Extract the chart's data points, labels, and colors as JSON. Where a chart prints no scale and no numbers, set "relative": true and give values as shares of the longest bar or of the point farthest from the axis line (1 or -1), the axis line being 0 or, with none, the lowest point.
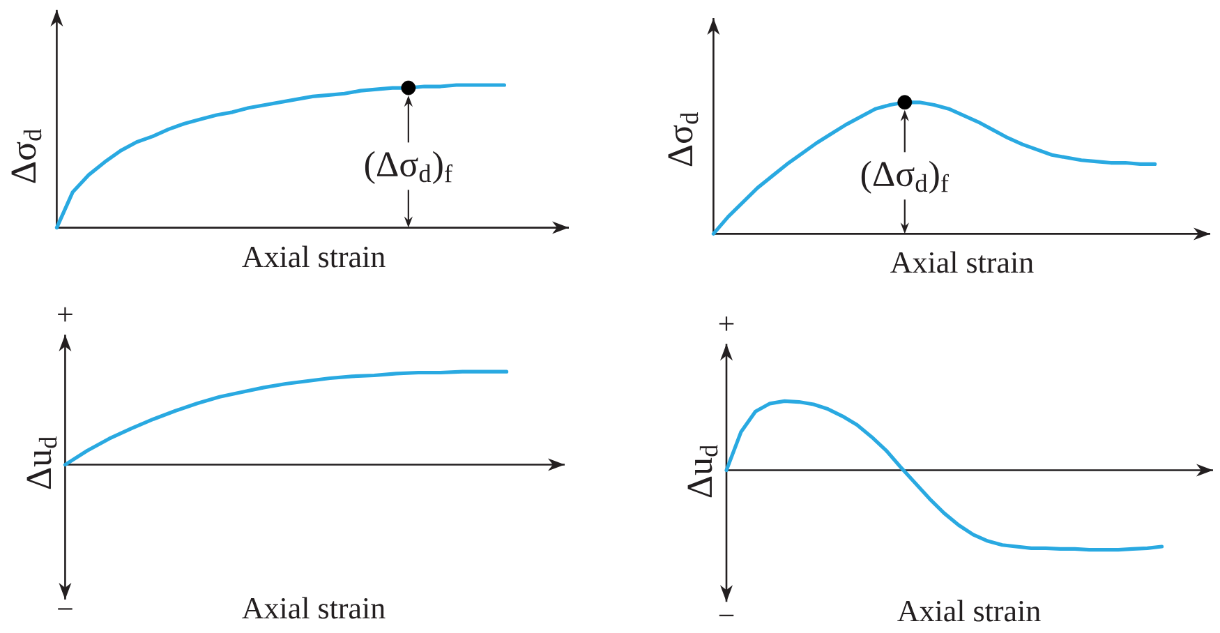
{
  "chart_data": [
    {
      "type": "line",
      "relative": true,
      "xlabel": "Axial strain",
      "ylabel": "Δσ$_{d}$",
      "categories": [
        null,
        null,
        null,
        null,
        null,
        null,
        null,
        null,
        null,
        null,
        null,
        null,
        null,
        null,
        null,
        null,
        null,
        null,
        null,
        null,
        null,
        null,
        null,
        null,
        null,
        null,
        null,
        null,
        null
      ],
      "series": [
        {
          "color": "#29a9e1",
          "values": [
            0,
            0.25,
            0.37,
            0.46,
            0.54,
            0.6,
            0.64,
            0.69,
            0.73,
            0.76,
            0.79,
            0.81,
            0.84,
            0.86,
            0.88,
            0.9,
            0.92,
            0.93,
            0.94,
            0.96,
            0.97,
            0.98,
            0.98,
            0.99,
            0.99,
            1,
            1,
            1,
            1
          ]
        },
        {
          "marker": "circle",
          "color": "#000000",
          "values": [
            null,
            null,
            null,
            null,
            null,
            null,
            null,
            null,
            null,
            null,
            null,
            null,
            null,
            null,
            null,
            null,
            null,
            null,
            null,
            null,
            null,
            null,
            0.98,
            null,
            null,
            null,
            null,
            null,
            null
          ]
        }
      ],
      "annotations": [
        {
          "text": "(Δσ$_{d}$)$_{f}$",
          "y": 0.98
        }
      ]
    },
    {
      "type": "line",
      "relative": true,
      "xlabel": "Axial strain",
      "ylabel": "Δσ$_{d}$",
      "categories": [
        null,
        null,
        null,
        null,
        null,
        null,
        null,
        null,
        null,
        null,
        null,
        null,
        null,
        null,
        null,
        null,
        null,
        null,
        null,
        null,
        null,
        null,
        null,
        null,
        null,
        null,
        null,
        null,
        null,
        null,
        null
      ],
      "series": [
        {
          "color": "#29a9e1",
          "values": [
            0,
            0.13,
            0.24,
            0.35,
            0.44,
            0.53,
            0.61,
            0.69,
            0.76,
            0.83,
            0.89,
            0.95,
            0.98,
            1,
            1,
            0.98,
            0.95,
            0.9,
            0.85,
            0.79,
            0.73,
            0.68,
            0.64,
            0.6,
            0.58,
            0.56,
            0.55,
            0.54,
            0.54,
            0.53,
            0.53
          ]
        },
        {
          "marker": "circle",
          "color": "#000000",
          "values": [
            null,
            null,
            null,
            null,
            null,
            null,
            null,
            null,
            null,
            null,
            null,
            null,
            null,
            1,
            null,
            null,
            null,
            null,
            null,
            null,
            null,
            null,
            null,
            null,
            null,
            null,
            null,
            null,
            null,
            null,
            null
          ]
        }
      ],
      "annotations": [
        {
          "text": "(Δσ$_{d}$)$_{f}$",
          "y": 1
        }
      ]
    },
    {
      "type": "line",
      "relative": true,
      "xlabel": "Axial strain",
      "ylabel": "Δu$_{d}$",
      "categories": [
        null,
        null,
        null,
        null,
        null,
        null,
        null,
        null,
        null,
        null,
        null,
        null,
        null,
        null,
        null,
        null,
        null,
        null,
        null,
        null,
        null
      ],
      "series": [
        {
          "color": "#29a9e1",
          "values": [
            0,
            0.15,
            0.28,
            0.39,
            0.49,
            0.58,
            0.66,
            0.73,
            0.78,
            0.83,
            0.87,
            0.9,
            0.93,
            0.95,
            0.96,
            0.98,
            0.99,
            0.99,
            1,
            1,
            1
          ]
        }
      ],
      "annotations": [
        "+",
        "−"
      ]
    },
    {
      "type": "line",
      "relative": true,
      "xlabel": "Axial strain",
      "ylabel": "Δu$_{d}$",
      "categories": [
        null,
        null,
        null,
        null,
        null,
        null,
        null,
        null,
        null,
        null,
        null,
        null,
        null,
        null,
        null,
        null,
        null,
        null,
        null,
        null,
        null,
        null,
        null,
        null,
        null,
        null,
        null,
        null,
        null,
        null,
        null
      ],
      "series": [
        {
          "color": "#29a9e1",
          "values": [
            0,
            0.48,
            0.74,
            0.84,
            0.87,
            0.86,
            0.83,
            0.77,
            0.68,
            0.57,
            0.42,
            0.25,
            0.04,
            -0.16,
            -0.36,
            -0.54,
            -0.69,
            -0.81,
            -0.89,
            -0.94,
            -0.96,
            -0.98,
            -0.98,
            -0.99,
            -0.99,
            -1,
            -1,
            -1,
            -0.99,
            -0.98,
            -0.96
          ]
        }
      ],
      "annotations": [
        "+",
        "−"
      ]
    }
  ]
}
